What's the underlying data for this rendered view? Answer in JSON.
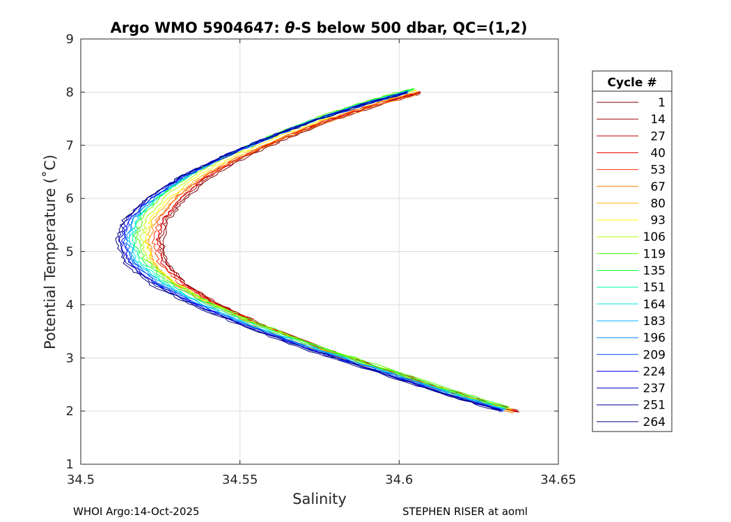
{
  "chart_data": {
    "type": "line",
    "title_prefix": "Argo WMO 5904647: ",
    "title_theta": "θ",
    "title_suffix": "-S below 500 dbar,  QC=(1,2)",
    "xlabel": "Salinity",
    "ylabel": "Potential Temperature (˚C)",
    "xlim": [
      34.5,
      34.65
    ],
    "ylim": [
      1,
      9
    ],
    "xticks": [
      34.5,
      34.55,
      34.6,
      34.65
    ],
    "xtick_labels": [
      "34.5",
      "34.55",
      "34.6",
      "34.65"
    ],
    "yticks": [
      1,
      2,
      3,
      4,
      5,
      6,
      7,
      8,
      9
    ],
    "ytick_labels": [
      "1",
      "2",
      "3",
      "4",
      "5",
      "6",
      "7",
      "8",
      "9"
    ],
    "grid": true,
    "legend_title": "Cycle #",
    "legend_position": "right-outside",
    "mean_profile": [
      {
        "s": 34.605,
        "t": 8.0
      },
      {
        "s": 34.59,
        "t": 7.75
      },
      {
        "s": 34.575,
        "t": 7.45
      },
      {
        "s": 34.56,
        "t": 7.1
      },
      {
        "s": 34.547,
        "t": 6.75
      },
      {
        "s": 34.536,
        "t": 6.4
      },
      {
        "s": 34.527,
        "t": 6.0
      },
      {
        "s": 34.521,
        "t": 5.6
      },
      {
        "s": 34.519,
        "t": 5.2
      },
      {
        "s": 34.521,
        "t": 4.8
      },
      {
        "s": 34.528,
        "t": 4.4
      },
      {
        "s": 34.54,
        "t": 4.0
      },
      {
        "s": 34.555,
        "t": 3.6
      },
      {
        "s": 34.575,
        "t": 3.15
      },
      {
        "s": 34.598,
        "t": 2.7
      },
      {
        "s": 34.618,
        "t": 2.3
      },
      {
        "s": 34.635,
        "t": 2.0
      }
    ],
    "series": [
      {
        "name": "1",
        "color": "#800000",
        "salinity_offset": 0.0055,
        "temp_offset": -0.02
      },
      {
        "name": "14",
        "color": "#9a0000",
        "salinity_offset": 0.005,
        "temp_offset": 0.0
      },
      {
        "name": "27",
        "color": "#c00000",
        "salinity_offset": 0.0045,
        "temp_offset": 0.02
      },
      {
        "name": "40",
        "color": "#e60000",
        "salinity_offset": 0.004,
        "temp_offset": -0.01
      },
      {
        "name": "53",
        "color": "#ff3300",
        "salinity_offset": 0.003,
        "temp_offset": 0.01
      },
      {
        "name": "67",
        "color": "#ff8000",
        "salinity_offset": 0.002,
        "temp_offset": -0.04
      },
      {
        "name": "80",
        "color": "#ffb300",
        "salinity_offset": 0.0015,
        "temp_offset": 0.0
      },
      {
        "name": "93",
        "color": "#ffff00",
        "salinity_offset": 0.001,
        "temp_offset": 0.03
      },
      {
        "name": "106",
        "color": "#b3ff00",
        "salinity_offset": 0.0,
        "temp_offset": 0.05
      },
      {
        "name": "119",
        "color": "#4dff00",
        "salinity_offset": -0.001,
        "temp_offset": 0.08
      },
      {
        "name": "135",
        "color": "#00ff33",
        "salinity_offset": -0.002,
        "temp_offset": 0.06
      },
      {
        "name": "151",
        "color": "#00ffb3",
        "salinity_offset": -0.0025,
        "temp_offset": 0.04
      },
      {
        "name": "164",
        "color": "#00e6e6",
        "salinity_offset": -0.003,
        "temp_offset": 0.02
      },
      {
        "name": "183",
        "color": "#00b3ff",
        "salinity_offset": -0.0035,
        "temp_offset": 0.03
      },
      {
        "name": "196",
        "color": "#0080ff",
        "salinity_offset": -0.004,
        "temp_offset": 0.0
      },
      {
        "name": "209",
        "color": "#004dff",
        "salinity_offset": -0.0045,
        "temp_offset": 0.02
      },
      {
        "name": "224",
        "color": "#0000ff",
        "salinity_offset": -0.005,
        "temp_offset": -0.01
      },
      {
        "name": "237",
        "color": "#0000cc",
        "salinity_offset": -0.0055,
        "temp_offset": 0.01
      },
      {
        "name": "251",
        "color": "#00009a",
        "salinity_offset": -0.006,
        "temp_offset": 0.0
      },
      {
        "name": "264",
        "color": "#000080",
        "salinity_offset": -0.0065,
        "temp_offset": -0.02
      }
    ]
  },
  "footer": {
    "left": "WHOI Argo:14-Oct-2025",
    "right": "STEPHEN RISER at aoml"
  }
}
